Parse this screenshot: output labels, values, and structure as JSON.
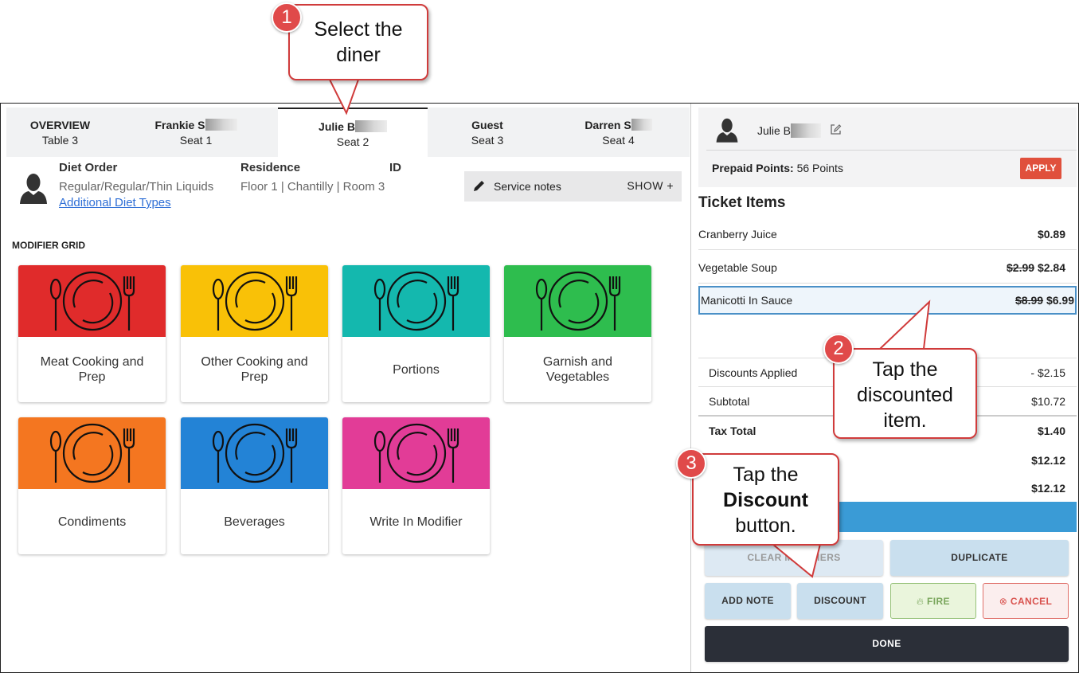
{
  "tabs": [
    {
      "name": "OVERVIEW",
      "sub": "Table 3",
      "blur": false
    },
    {
      "name": "Frankie S",
      "sub": "Seat 1",
      "blur": true
    },
    {
      "name": "Julie B",
      "sub": "Seat 2",
      "blur": true,
      "active": true
    },
    {
      "name": "Guest",
      "sub": "Seat 3",
      "blur": false
    },
    {
      "name": "Darren S",
      "sub": "Seat 4",
      "blur": true
    }
  ],
  "diner": {
    "diet_order_label": "Diet Order",
    "diet_order_value": "Regular/Regular/Thin Liquids",
    "additional_link": "Additional Diet Types",
    "residence_label": "Residence",
    "residence_value": "Floor 1 | Chantilly | Room 3",
    "id_label": "ID"
  },
  "service_notes": {
    "label": "Service notes",
    "action": "SHOW +"
  },
  "modifier_grid": {
    "title": "MODIFIER GRID",
    "tiles": [
      {
        "label": "Meat Cooking and Prep",
        "color": "#e02b2b"
      },
      {
        "label": "Other Cooking and Prep",
        "color": "#f9c107"
      },
      {
        "label": "Portions",
        "color": "#14b8ae"
      },
      {
        "label": "Garnish and Vegetables",
        "color": "#2ebd4e"
      },
      {
        "label": "Condiments",
        "color": "#f47620"
      },
      {
        "label": "Beverages",
        "color": "#2383d6"
      },
      {
        "label": "Write In Modifier",
        "color": "#e23c97"
      }
    ]
  },
  "guest": {
    "name": "Julie B",
    "prepaid_label": "Prepaid Points:",
    "prepaid_value": "56 Points",
    "apply_label": "APPLY"
  },
  "ticket": {
    "title": "Ticket Items",
    "items": [
      {
        "name": "Cranberry Juice",
        "old_price": "",
        "price": "$0.89"
      },
      {
        "name": "Vegetable Soup",
        "old_price": "$2.99",
        "price": "$2.84"
      },
      {
        "name": "Manicotti In Sauce",
        "old_price": "$8.99",
        "price": "$6.99"
      }
    ],
    "totals": [
      {
        "label": "Discounts Applied",
        "value": "- $2.15"
      },
      {
        "label": "Subtotal",
        "value": "$10.72"
      },
      {
        "label": "Tax Total",
        "value": "$1.40"
      },
      {
        "label": "",
        "value": "$12.12"
      },
      {
        "label": "",
        "value": "$12.12"
      }
    ]
  },
  "actions": {
    "clear_modifiers": "CLEAR MODIFIERS",
    "duplicate": "DUPLICATE",
    "add_note": "ADD NOTE",
    "discount": "DISCOUNT",
    "fire": "FIRE",
    "cancel": "CANCEL",
    "done": "DONE"
  },
  "callouts": [
    {
      "number": "1",
      "text_lines": [
        "Select the",
        "diner"
      ]
    },
    {
      "number": "2",
      "text_lines": [
        "Tap the",
        "discounted",
        "item."
      ]
    },
    {
      "number": "3",
      "text_pre": "Tap the",
      "text_bold": "Discount",
      "text_post": "button."
    }
  ]
}
